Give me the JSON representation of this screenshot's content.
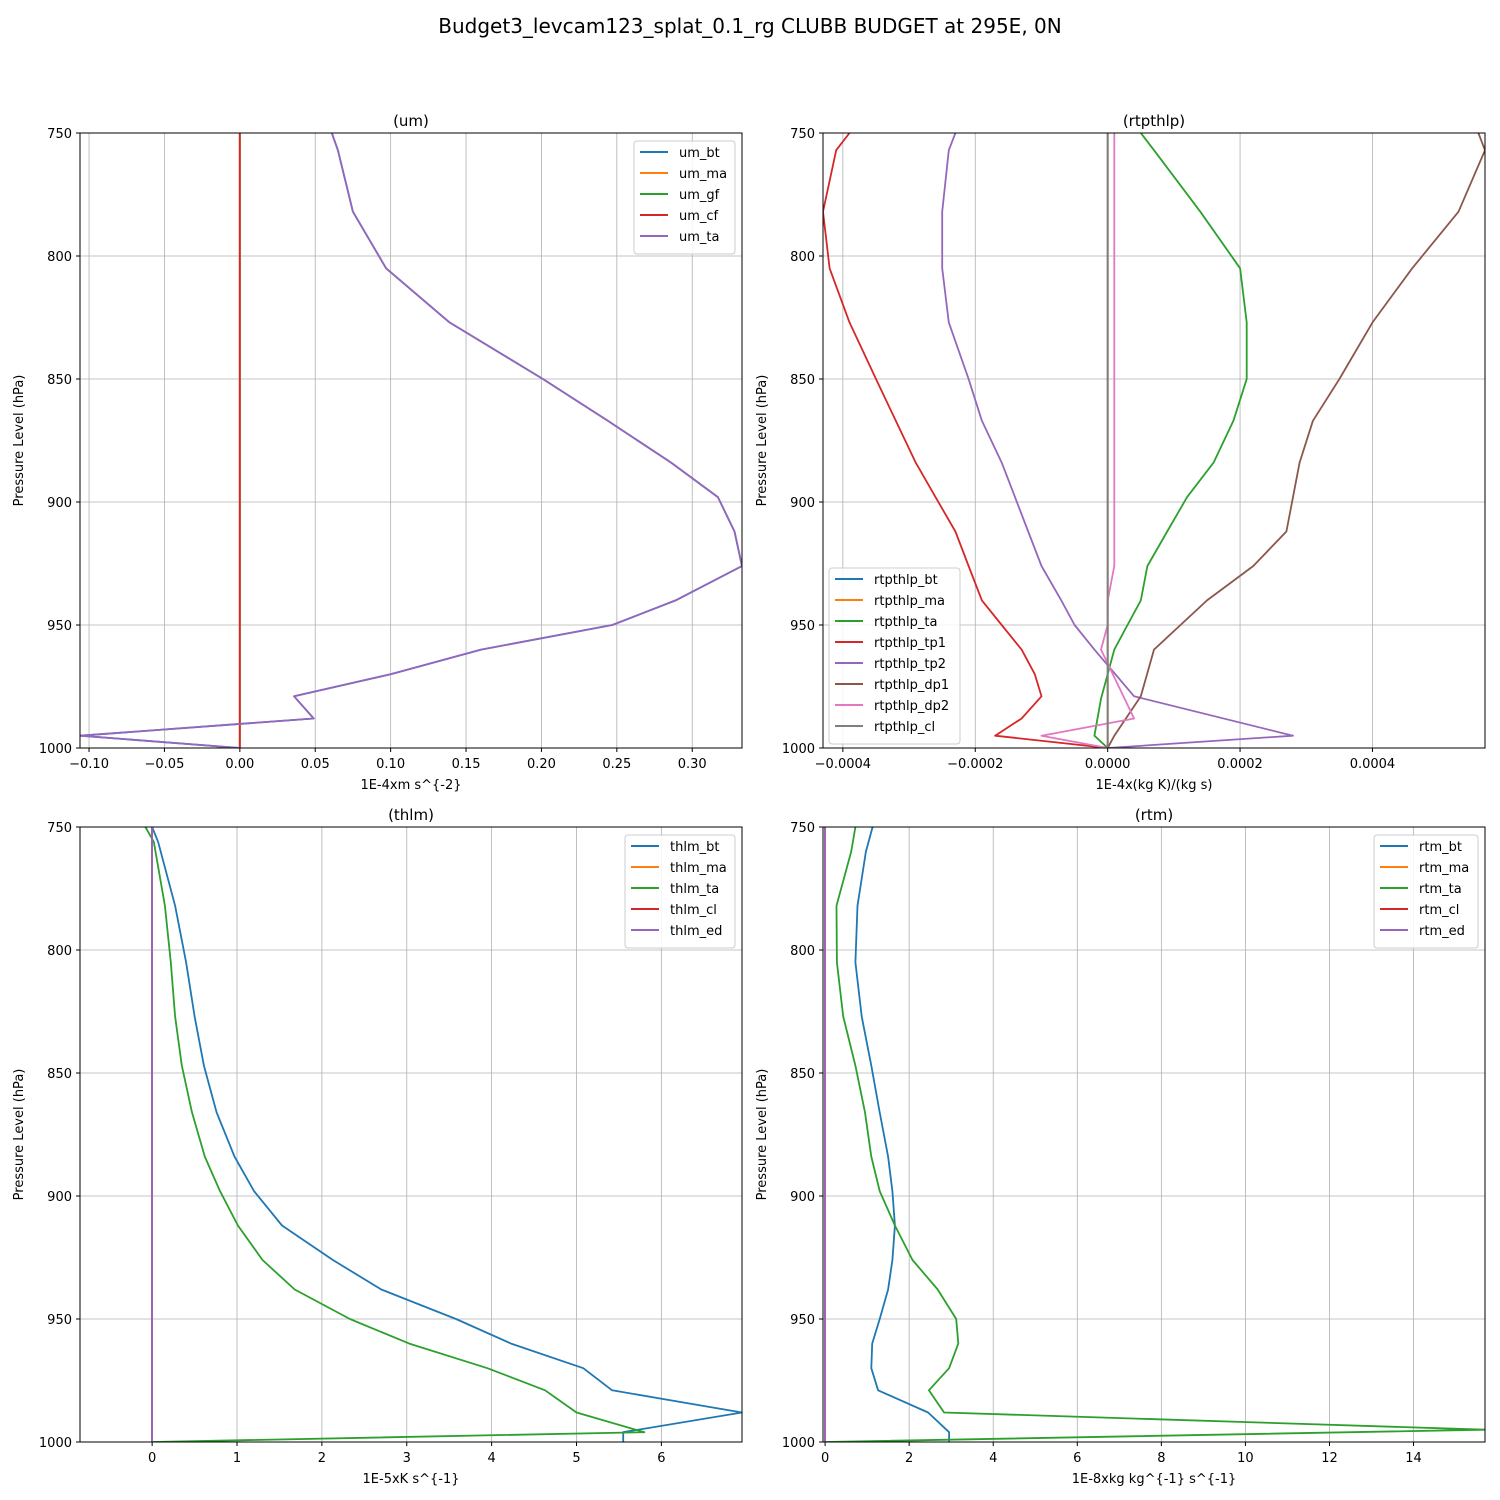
{
  "figure": {
    "suptitle": "Budget3_levcam123_splat_0.1_rg CLUBB BUDGET at 295E, 0N"
  },
  "colors": {
    "C0": "#1f77b4",
    "C1": "#ff7f0e",
    "C2": "#2ca02c",
    "C3": "#d62728",
    "C4": "#9467bd",
    "C5": "#8c564b",
    "C6": "#e377c2",
    "C7": "#7f7f7f",
    "grid": "#b0b0b0"
  },
  "chart_data": [
    {
      "type": "line",
      "title": "(um)",
      "xlabel": "1E-4xm s^{-2}",
      "ylabel": "Pressure Level (hPa)",
      "xlim": [
        -0.106,
        0.333
      ],
      "ylim": [
        1000,
        750
      ],
      "xticks": [
        -0.1,
        -0.05,
        0.0,
        0.05,
        0.1,
        0.15,
        0.2,
        0.25,
        0.3
      ],
      "xtick_labels": [
        "−0.10",
        "−0.05",
        "0.00",
        "0.05",
        "0.10",
        "0.15",
        "0.20",
        "0.25",
        "0.30"
      ],
      "yticks": [
        750,
        800,
        850,
        900,
        950,
        1000
      ],
      "ytick_labels": [
        "750",
        "800",
        "850",
        "900",
        "950",
        "1000"
      ],
      "grid": true,
      "legend_position": "top-right",
      "series": [
        {
          "name": "um_bt",
          "color": "C0",
          "x": [
            0.061,
            0.065,
            0.075,
            0.097,
            0.139,
            0.201,
            0.244,
            0.286,
            0.317,
            0.328,
            0.333,
            0.289,
            0.247,
            0.16,
            0.1,
            0.036,
            0.049,
            -0.106,
            0.0
          ],
          "y": [
            750,
            757,
            782,
            805,
            827,
            850,
            867,
            884,
            898,
            912,
            926,
            940,
            950,
            960,
            970,
            979,
            988,
            995,
            1000
          ]
        },
        {
          "name": "um_ma",
          "color": "C1",
          "x": [
            0.0,
            0.0
          ],
          "y": [
            750,
            1000
          ]
        },
        {
          "name": "um_gf",
          "color": "C2",
          "x": [
            0.0,
            0.0
          ],
          "y": [
            750,
            1000
          ]
        },
        {
          "name": "um_cf",
          "color": "C3",
          "x": [
            0.0,
            0.0
          ],
          "y": [
            750,
            1000
          ]
        },
        {
          "name": "um_ta",
          "color": "C4",
          "x": [
            0.061,
            0.065,
            0.075,
            0.097,
            0.139,
            0.201,
            0.244,
            0.286,
            0.317,
            0.328,
            0.333,
            0.289,
            0.247,
            0.16,
            0.1,
            0.036,
            0.049,
            -0.106,
            0.0
          ],
          "y": [
            750,
            757,
            782,
            805,
            827,
            850,
            867,
            884,
            898,
            912,
            926,
            940,
            950,
            960,
            970,
            979,
            988,
            995,
            1000
          ]
        }
      ]
    },
    {
      "type": "line",
      "title": "(rtpthlp)",
      "xlabel": "1E-4x(kg K)/(kg s)",
      "ylabel": "Pressure Level (hPa)",
      "xlim": [
        -0.00043,
        0.00057
      ],
      "ylim": [
        1000,
        750
      ],
      "xticks": [
        -0.0004,
        -0.0002,
        0.0,
        0.0002,
        0.0004
      ],
      "xtick_labels": [
        "−0.0004",
        "−0.0002",
        "0.0000",
        "0.0002",
        "0.0004"
      ],
      "yticks": [
        750,
        800,
        850,
        900,
        950,
        1000
      ],
      "ytick_labels": [
        "750",
        "800",
        "850",
        "900",
        "950",
        "1000"
      ],
      "grid": true,
      "legend_position": "bottom-left",
      "series": [
        {
          "name": "rtpthlp_bt",
          "color": "C0",
          "x": [
            0.0,
            0.0
          ],
          "y": [
            750,
            1000
          ]
        },
        {
          "name": "rtpthlp_ma",
          "color": "C1",
          "x": [
            0.0,
            0.0
          ],
          "y": [
            750,
            1000
          ]
        },
        {
          "name": "rtpthlp_ta",
          "color": "C2",
          "x": [
            5e-05,
            7e-05,
            0.00014,
            0.0002,
            0.00021,
            0.00021,
            0.00019,
            0.00016,
            0.00012,
            9e-05,
            6e-05,
            5e-05,
            3e-05,
            1e-05,
            -1e-05,
            -2e-05,
            0.0
          ],
          "y": [
            750,
            757,
            782,
            805,
            827,
            850,
            867,
            884,
            898,
            912,
            926,
            940,
            950,
            960,
            980,
            995,
            1000
          ]
        },
        {
          "name": "rtpthlp_tp1",
          "color": "C3",
          "x": [
            -0.00039,
            -0.00041,
            -0.00043,
            -0.00042,
            -0.00039,
            -0.00035,
            -0.00032,
            -0.00029,
            -0.00026,
            -0.00023,
            -0.00021,
            -0.00019,
            -0.00016,
            -0.00013,
            -0.00011,
            -0.0001,
            -0.00013,
            -0.00017,
            0.0
          ],
          "y": [
            750,
            757,
            782,
            805,
            827,
            850,
            867,
            884,
            898,
            912,
            926,
            940,
            950,
            960,
            970,
            979,
            988,
            995,
            1000
          ]
        },
        {
          "name": "rtpthlp_tp2",
          "color": "C4",
          "x": [
            -0.00023,
            -0.00024,
            -0.00025,
            -0.00025,
            -0.00024,
            -0.00021,
            -0.00019,
            -0.00016,
            -0.00014,
            -0.00012,
            -0.0001,
            -7e-05,
            -5e-05,
            -2e-05,
            4e-05,
            0.00028,
            0.0
          ],
          "y": [
            750,
            757,
            782,
            805,
            827,
            850,
            867,
            884,
            898,
            912,
            926,
            940,
            950,
            960,
            979,
            995,
            1000
          ]
        },
        {
          "name": "rtpthlp_dp1",
          "color": "C5",
          "x": [
            0.00056,
            0.00057,
            0.00053,
            0.00046,
            0.0004,
            0.00035,
            0.00031,
            0.00029,
            0.00028,
            0.00027,
            0.00022,
            0.00015,
            0.00011,
            7e-05,
            5e-05,
            1e-05,
            0.0
          ],
          "y": [
            750,
            757,
            782,
            805,
            827,
            850,
            867,
            884,
            898,
            912,
            926,
            940,
            950,
            960,
            979,
            995,
            1000
          ]
        },
        {
          "name": "rtpthlp_dp2",
          "color": "C6",
          "x": [
            1e-05,
            1e-05,
            1e-05,
            1e-05,
            1e-05,
            1e-05,
            1e-05,
            1e-05,
            1e-05,
            1e-05,
            1e-05,
            0.0,
            -1e-07,
            -1e-05,
            4e-05,
            -0.0001,
            0.0
          ],
          "y": [
            750,
            757,
            782,
            805,
            827,
            850,
            867,
            884,
            898,
            912,
            926,
            940,
            950,
            960,
            988,
            995,
            1000
          ]
        },
        {
          "name": "rtpthlp_cl",
          "color": "C7",
          "x": [
            0.0,
            0.0
          ],
          "y": [
            750,
            1000
          ]
        }
      ]
    },
    {
      "type": "line",
      "title": "(thlm)",
      "xlabel": "1E-5xK s^{-1}",
      "ylabel": "Pressure Level (hPa)",
      "xlim": [
        -0.85,
        6.95
      ],
      "ylim": [
        1000,
        750
      ],
      "xticks": [
        0,
        1,
        2,
        3,
        4,
        5,
        6
      ],
      "xtick_labels": [
        "0",
        "1",
        "2",
        "3",
        "4",
        "5",
        "6"
      ],
      "yticks": [
        750,
        800,
        850,
        900,
        950,
        1000
      ],
      "ytick_labels": [
        "750",
        "800",
        "850",
        "900",
        "950",
        "1000"
      ],
      "grid": true,
      "legend_position": "top-right",
      "series": [
        {
          "name": "thlm_bt",
          "color": "C0",
          "x": [
            0.0,
            0.07,
            0.27,
            0.4,
            0.5,
            0.61,
            0.76,
            0.97,
            1.2,
            1.53,
            2.13,
            2.7,
            3.58,
            4.23,
            5.08,
            5.42,
            6.95,
            5.55,
            5.55
          ],
          "y": [
            750,
            756,
            782,
            805,
            827,
            847,
            866,
            884,
            898,
            912,
            926,
            938,
            950,
            960,
            970,
            979,
            988,
            996,
            1000
          ]
        },
        {
          "name": "thlm_ma",
          "color": "C1",
          "x": [
            0.0,
            0.0
          ],
          "y": [
            750,
            1000
          ]
        },
        {
          "name": "thlm_ta",
          "color": "C2",
          "x": [
            -0.08,
            0.02,
            0.15,
            0.22,
            0.27,
            0.35,
            0.47,
            0.62,
            0.8,
            1.01,
            1.3,
            1.68,
            2.33,
            3.03,
            3.95,
            4.63,
            5.0,
            5.8,
            0.0
          ],
          "y": [
            750,
            756,
            782,
            805,
            827,
            847,
            866,
            884,
            898,
            912,
            926,
            938,
            950,
            960,
            970,
            979,
            988,
            996,
            1000
          ]
        },
        {
          "name": "thlm_cl",
          "color": "C3",
          "x": [
            0.0,
            0.0
          ],
          "y": [
            750,
            1000
          ]
        },
        {
          "name": "thlm_ed",
          "color": "C4",
          "x": [
            0.0,
            0.0
          ],
          "y": [
            750,
            1000
          ]
        }
      ]
    },
    {
      "type": "line",
      "title": "(rtm)",
      "xlabel": "1E-8xkg kg^{-1} s^{-1}",
      "ylabel": "Pressure Level (hPa)",
      "xlim": [
        -0.05,
        15.7
      ],
      "ylim": [
        1000,
        750
      ],
      "xticks": [
        0,
        2,
        4,
        6,
        8,
        10,
        12,
        14
      ],
      "xtick_labels": [
        "0",
        "2",
        "4",
        "6",
        "8",
        "10",
        "12",
        "14"
      ],
      "yticks": [
        750,
        800,
        850,
        900,
        950,
        1000
      ],
      "ytick_labels": [
        "750",
        "800",
        "850",
        "900",
        "950",
        "1000"
      ],
      "grid": true,
      "legend_position": "top-right",
      "series": [
        {
          "name": "rtm_bt",
          "color": "C0",
          "x": [
            1.13,
            0.97,
            0.77,
            0.72,
            0.87,
            1.1,
            1.3,
            1.5,
            1.6,
            1.66,
            1.6,
            1.5,
            1.3,
            1.12,
            1.1,
            1.26,
            2.45,
            2.95,
            2.95
          ],
          "y": [
            750,
            760,
            782,
            805,
            827,
            847,
            866,
            884,
            898,
            912,
            926,
            938,
            950,
            960,
            970,
            979,
            988,
            996,
            1000
          ]
        },
        {
          "name": "rtm_ma",
          "color": "C1",
          "x": [
            0.0,
            0.0
          ],
          "y": [
            750,
            1000
          ]
        },
        {
          "name": "rtm_ta",
          "color": "C2",
          "x": [
            0.72,
            0.62,
            0.27,
            0.28,
            0.43,
            0.72,
            0.95,
            1.1,
            1.3,
            1.66,
            2.08,
            2.68,
            3.12,
            3.17,
            2.95,
            2.47,
            2.83,
            15.7,
            0.0
          ],
          "y": [
            750,
            760,
            782,
            805,
            827,
            847,
            866,
            884,
            898,
            912,
            926,
            938,
            950,
            960,
            970,
            979,
            988,
            995,
            1000
          ]
        },
        {
          "name": "rtm_cl",
          "color": "C3",
          "x": [
            0.0,
            0.0
          ],
          "y": [
            750,
            1000
          ]
        },
        {
          "name": "rtm_ed",
          "color": "C4",
          "x": [
            0.0,
            0.0
          ],
          "y": [
            750,
            1000
          ]
        }
      ]
    }
  ]
}
